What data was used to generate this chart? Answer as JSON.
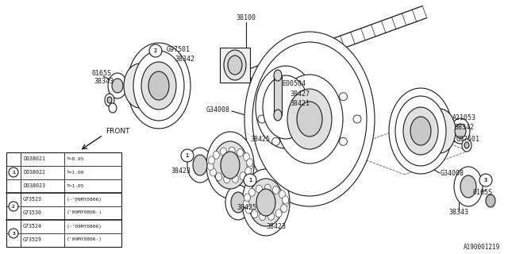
{
  "background_color": "#ffffff",
  "line_color": "#1a1a1a",
  "image_number": "A190001219",
  "table_rows": [
    [
      "",
      "D038021",
      "T=0.95"
    ],
    [
      "1",
      "D038022",
      "T=1.00"
    ],
    [
      "",
      "D038023",
      "T=1.05"
    ],
    [
      "2",
      "G73523",
      "(-'09MY0806)"
    ],
    [
      "",
      "G73530",
      "('09MY0806-)"
    ],
    [
      "3",
      "G73524",
      "(-'09MY0806)"
    ],
    [
      "",
      "G73529",
      "('09MY0806-)"
    ]
  ]
}
